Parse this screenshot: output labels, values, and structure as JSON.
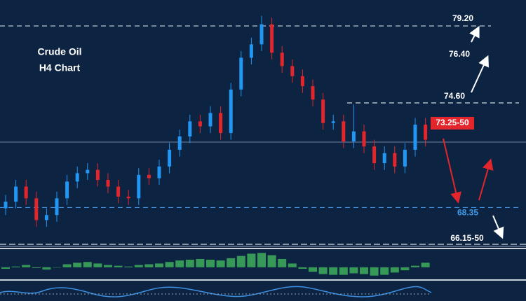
{
  "chart_data": {
    "type": "candlestick",
    "title": "Crude Oil",
    "subtitle": "H4 Chart",
    "ylim": [
      65.9,
      80.75
    ],
    "open": [
      68.3,
      68.7,
      69.6,
      68.9,
      67.6,
      67.9,
      68.9,
      69.9,
      70.4,
      70.6,
      70.0,
      69.6,
      69.0,
      68.9,
      70.3,
      70.1,
      70.8,
      71.8,
      72.6,
      73.5,
      73.2,
      74.0,
      72.8,
      75.4,
      77.3,
      78.1,
      79.3,
      77.6,
      76.8,
      76.2,
      75.6,
      74.8,
      73.4,
      73.5,
      72.3,
      72.9,
      72.0,
      71.0,
      71.6,
      70.8,
      71.8,
      73.3
    ],
    "high": [
      69.1,
      70.0,
      70.0,
      69.3,
      68.3,
      69.3,
      70.3,
      70.8,
      71.0,
      71.0,
      70.4,
      70.0,
      69.4,
      70.7,
      70.7,
      71.2,
      72.2,
      73.0,
      73.9,
      73.9,
      74.4,
      74.4,
      75.8,
      77.7,
      78.5,
      79.8,
      79.7,
      78.0,
      77.2,
      76.6,
      76.0,
      75.2,
      73.9,
      73.9,
      74.5,
      73.3,
      72.4,
      72.0,
      72.0,
      72.2,
      73.7,
      73.7
    ],
    "low": [
      67.9,
      68.3,
      68.5,
      67.2,
      67.2,
      67.5,
      68.5,
      69.5,
      70.0,
      69.6,
      69.2,
      68.6,
      68.5,
      68.5,
      69.7,
      69.7,
      70.4,
      71.4,
      72.2,
      72.8,
      72.8,
      72.4,
      72.4,
      75.0,
      76.9,
      77.7,
      77.2,
      76.4,
      75.8,
      75.2,
      74.4,
      73.0,
      73.0,
      71.9,
      71.9,
      71.6,
      70.6,
      70.6,
      70.4,
      70.4,
      71.4,
      72.0
    ],
    "close": [
      68.7,
      69.6,
      68.9,
      67.6,
      67.9,
      68.9,
      69.9,
      70.4,
      70.6,
      70.0,
      69.6,
      69.0,
      68.9,
      70.3,
      70.1,
      70.8,
      71.8,
      72.6,
      73.5,
      73.2,
      74.0,
      72.8,
      75.4,
      77.3,
      78.1,
      79.3,
      77.6,
      76.8,
      76.2,
      75.6,
      74.8,
      73.4,
      73.5,
      72.3,
      72.9,
      72.0,
      71.0,
      71.6,
      70.8,
      71.8,
      73.3,
      72.4
    ],
    "up_color": "#2196f3",
    "down_color": "#e3262b",
    "oscillator": {
      "ylim": [
        -1.5,
        2.3
      ],
      "color": "#3fae5a",
      "values": [
        -0.2,
        0.1,
        0.3,
        -0.1,
        -0.3,
        0.0,
        0.4,
        0.6,
        0.7,
        0.5,
        0.3,
        0.2,
        0.1,
        0.3,
        0.4,
        0.5,
        0.7,
        0.9,
        1.0,
        1.1,
        1.0,
        0.9,
        1.2,
        1.5,
        1.8,
        1.9,
        1.6,
        1.1,
        0.5,
        -0.2,
        -0.6,
        -0.9,
        -1.0,
        -1.0,
        -0.8,
        -0.9,
        -1.1,
        -1.0,
        -0.7,
        -0.4,
        0.2,
        0.6
      ]
    },
    "levels": [
      {
        "value": 79.2,
        "label": "79.20"
      },
      {
        "value": 76.4,
        "label": "76.40"
      },
      {
        "value": 74.6,
        "label": "74.60"
      },
      {
        "value": 73.25,
        "label": "73.25-50"
      },
      {
        "value": 68.35,
        "label": "68.35"
      },
      {
        "value": 66.15,
        "label": "66.15-50"
      }
    ]
  }
}
